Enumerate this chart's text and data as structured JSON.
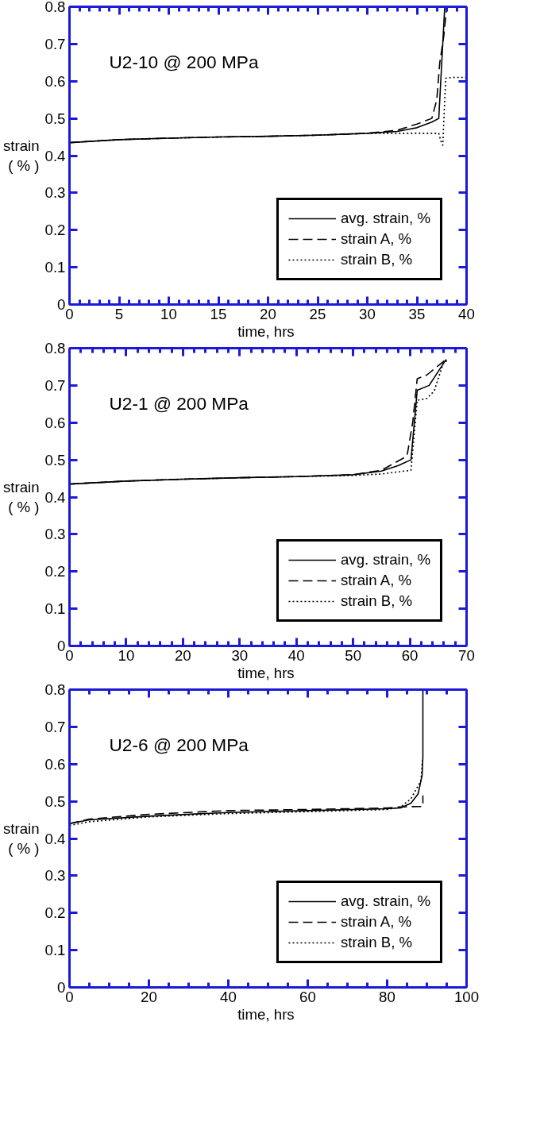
{
  "chart_data": [
    {
      "type": "line",
      "annotations": [
        "U2-10 @ 200 MPa"
      ],
      "xlabel": "time,  hrs",
      "ylabel": "strain\n( % )",
      "xlim": [
        0,
        40
      ],
      "ylim": [
        0,
        0.8
      ],
      "legend": "bottom right",
      "grid": false,
      "xticks": [
        0,
        {
          "value": 1,
          "label": null
        },
        {
          "value": 2,
          "label": null
        },
        {
          "value": 3,
          "label": null
        },
        {
          "value": 4,
          "label": null
        },
        5,
        {
          "value": 6,
          "label": null
        },
        {
          "value": 7,
          "label": null
        },
        {
          "value": 8,
          "label": null
        },
        {
          "value": 9,
          "label": null
        },
        10,
        {
          "value": 11,
          "label": null
        },
        {
          "value": 12,
          "label": null
        },
        {
          "value": 13,
          "label": null
        },
        {
          "value": 14,
          "label": null
        },
        15,
        {
          "value": 16,
          "label": null
        },
        {
          "value": 17,
          "label": null
        },
        {
          "value": 18,
          "label": null
        },
        {
          "value": 19,
          "label": null
        },
        20,
        {
          "value": 21,
          "label": null
        },
        {
          "value": 22,
          "label": null
        },
        {
          "value": 23,
          "label": null
        },
        {
          "value": 24,
          "label": null
        },
        25,
        {
          "value": 26,
          "label": null
        },
        {
          "value": 27,
          "label": null
        },
        {
          "value": 28,
          "label": null
        },
        {
          "value": 29,
          "label": null
        },
        30,
        {
          "value": 31,
          "label": null
        },
        {
          "value": 32,
          "label": null
        },
        {
          "value": 33,
          "label": null
        },
        {
          "value": 34,
          "label": null
        },
        35,
        {
          "value": 36,
          "label": null
        },
        {
          "value": 37,
          "label": null
        },
        {
          "value": 38,
          "label": null
        },
        {
          "value": 39,
          "label": null
        },
        40
      ],
      "yticks": [
        0,
        0.1,
        0.2,
        0.3,
        0.4,
        0.5,
        0.6,
        0.7,
        0.8
      ],
      "series": [
        {
          "name": "avg. strain, %",
          "color": "#000000",
          "line_style": "solid",
          "x": [
            0,
            5,
            10,
            15,
            20,
            25,
            30,
            33,
            35,
            36.5,
            37.2,
            37.4,
            37.6,
            37.8
          ],
          "values": [
            0.435,
            0.443,
            0.447,
            0.45,
            0.452,
            0.455,
            0.46,
            0.465,
            0.475,
            0.49,
            0.5,
            0.6,
            0.7,
            0.8
          ]
        },
        {
          "name": "strain A, %",
          "color": "#000000",
          "line_style": "dashed",
          "x": [
            0,
            5,
            10,
            15,
            20,
            25,
            30,
            33,
            35,
            36.5,
            37,
            37.3,
            37.7,
            38
          ],
          "values": [
            0.435,
            0.443,
            0.447,
            0.45,
            0.452,
            0.455,
            0.46,
            0.468,
            0.485,
            0.5,
            0.55,
            0.65,
            0.72,
            0.8
          ]
        },
        {
          "name": "strain B, %",
          "color": "#000000",
          "line_style": "dotted",
          "x": [
            0,
            5,
            10,
            15,
            20,
            25,
            30,
            35,
            37.2,
            37.4,
            37.6,
            37.9,
            38.5,
            40
          ],
          "values": [
            0.435,
            0.443,
            0.447,
            0.45,
            0.452,
            0.455,
            0.46,
            0.46,
            0.46,
            0.44,
            0.428,
            0.608,
            0.61,
            0.61
          ]
        }
      ]
    },
    {
      "type": "line",
      "annotations": [
        "U2-1 @ 200 MPa"
      ],
      "xlabel": "time,  hrs",
      "ylabel": "strain\n( % )",
      "xlim": [
        0,
        70
      ],
      "ylim": [
        0,
        0.8
      ],
      "legend": "bottom right",
      "grid": false,
      "xticks": [
        0,
        {
          "value": 2,
          "label": null
        },
        {
          "value": 4,
          "label": null
        },
        {
          "value": 6,
          "label": null
        },
        {
          "value": 8,
          "label": null
        },
        10,
        {
          "value": 12,
          "label": null
        },
        {
          "value": 14,
          "label": null
        },
        {
          "value": 16,
          "label": null
        },
        {
          "value": 18,
          "label": null
        },
        20,
        {
          "value": 22,
          "label": null
        },
        {
          "value": 24,
          "label": null
        },
        {
          "value": 26,
          "label": null
        },
        {
          "value": 28,
          "label": null
        },
        30,
        {
          "value": 32,
          "label": null
        },
        {
          "value": 34,
          "label": null
        },
        {
          "value": 36,
          "label": null
        },
        {
          "value": 38,
          "label": null
        },
        40,
        {
          "value": 42,
          "label": null
        },
        {
          "value": 44,
          "label": null
        },
        {
          "value": 46,
          "label": null
        },
        {
          "value": 48,
          "label": null
        },
        50,
        {
          "value": 52,
          "label": null
        },
        {
          "value": 54,
          "label": null
        },
        {
          "value": 56,
          "label": null
        },
        {
          "value": 58,
          "label": null
        },
        60,
        {
          "value": 62,
          "label": null
        },
        {
          "value": 64,
          "label": null
        },
        {
          "value": 66,
          "label": null
        },
        {
          "value": 68,
          "label": null
        },
        70
      ],
      "yticks": [
        0,
        0.1,
        0.2,
        0.3,
        0.4,
        0.5,
        0.6,
        0.7,
        0.8
      ],
      "series": [
        {
          "name": "avg. strain, %",
          "color": "#000000",
          "line_style": "solid",
          "x": [
            0,
            10,
            20,
            30,
            40,
            50,
            55,
            58,
            60.2,
            61.3,
            63.4,
            66.4
          ],
          "values": [
            0.435,
            0.443,
            0.448,
            0.452,
            0.455,
            0.46,
            0.47,
            0.485,
            0.5,
            0.687,
            0.7,
            0.77
          ]
        },
        {
          "name": "strain A, %",
          "color": "#000000",
          "line_style": "dashed",
          "x": [
            0,
            10,
            20,
            30,
            40,
            50,
            55,
            59.5,
            60.5,
            61.3,
            63,
            66.4
          ],
          "values": [
            0.435,
            0.443,
            0.448,
            0.452,
            0.455,
            0.46,
            0.472,
            0.51,
            0.6,
            0.718,
            0.728,
            0.77
          ]
        },
        {
          "name": "strain B, %",
          "color": "#000000",
          "line_style": "dotted",
          "x": [
            0,
            10,
            20,
            30,
            40,
            50,
            55,
            60.2,
            61.3,
            63,
            64.3,
            65.9,
            66.9
          ],
          "values": [
            0.435,
            0.443,
            0.448,
            0.452,
            0.455,
            0.458,
            0.462,
            0.472,
            0.66,
            0.665,
            0.685,
            0.76,
            0.77
          ]
        }
      ]
    },
    {
      "type": "line",
      "annotations": [
        "U2-6 @ 200 MPa"
      ],
      "xlabel": "time,  hrs",
      "ylabel": "strain\n( % )",
      "xlim": [
        0,
        100
      ],
      "ylim": [
        0,
        0.8
      ],
      "legend": "bottom right",
      "grid": false,
      "xticks": [
        0,
        {
          "value": 5,
          "label": null
        },
        {
          "value": 10,
          "label": null
        },
        {
          "value": 15,
          "label": null
        },
        20,
        {
          "value": 25,
          "label": null
        },
        {
          "value": 30,
          "label": null
        },
        {
          "value": 35,
          "label": null
        },
        40,
        {
          "value": 45,
          "label": null
        },
        {
          "value": 50,
          "label": null
        },
        {
          "value": 55,
          "label": null
        },
        60,
        {
          "value": 65,
          "label": null
        },
        {
          "value": 70,
          "label": null
        },
        {
          "value": 75,
          "label": null
        },
        80,
        {
          "value": 85,
          "label": null
        },
        {
          "value": 90,
          "label": null
        },
        {
          "value": 95,
          "label": null
        },
        100
      ],
      "yticks": [
        0,
        0.1,
        0.2,
        0.3,
        0.4,
        0.5,
        0.6,
        0.7,
        0.8
      ],
      "series": [
        {
          "name": "avg. strain, %",
          "color": "#000000",
          "line_style": "solid",
          "x": [
            0,
            5,
            20,
            40,
            60,
            80,
            83.4,
            86,
            87.8,
            88.8,
            89,
            89
          ],
          "values": [
            0.44,
            0.45,
            0.46,
            0.47,
            0.475,
            0.48,
            0.482,
            0.495,
            0.52,
            0.57,
            0.62,
            0.8
          ]
        },
        {
          "name": "strain A, %",
          "color": "#000000",
          "line_style": "dashed",
          "x": [
            0,
            5,
            20,
            40,
            60,
            80,
            84,
            87.8,
            89,
            89
          ],
          "values": [
            0.44,
            0.452,
            0.465,
            0.475,
            0.478,
            0.482,
            0.485,
            0.486,
            0.486,
            0.516
          ]
        },
        {
          "name": "strain B, %",
          "color": "#000000",
          "line_style": "dotted",
          "x": [
            0,
            5,
            20,
            40,
            60,
            80,
            83.4,
            86,
            88.5,
            88.9
          ],
          "values": [
            0.435,
            0.445,
            0.458,
            0.467,
            0.472,
            0.478,
            0.485,
            0.507,
            0.555,
            0.61
          ]
        }
      ]
    }
  ]
}
